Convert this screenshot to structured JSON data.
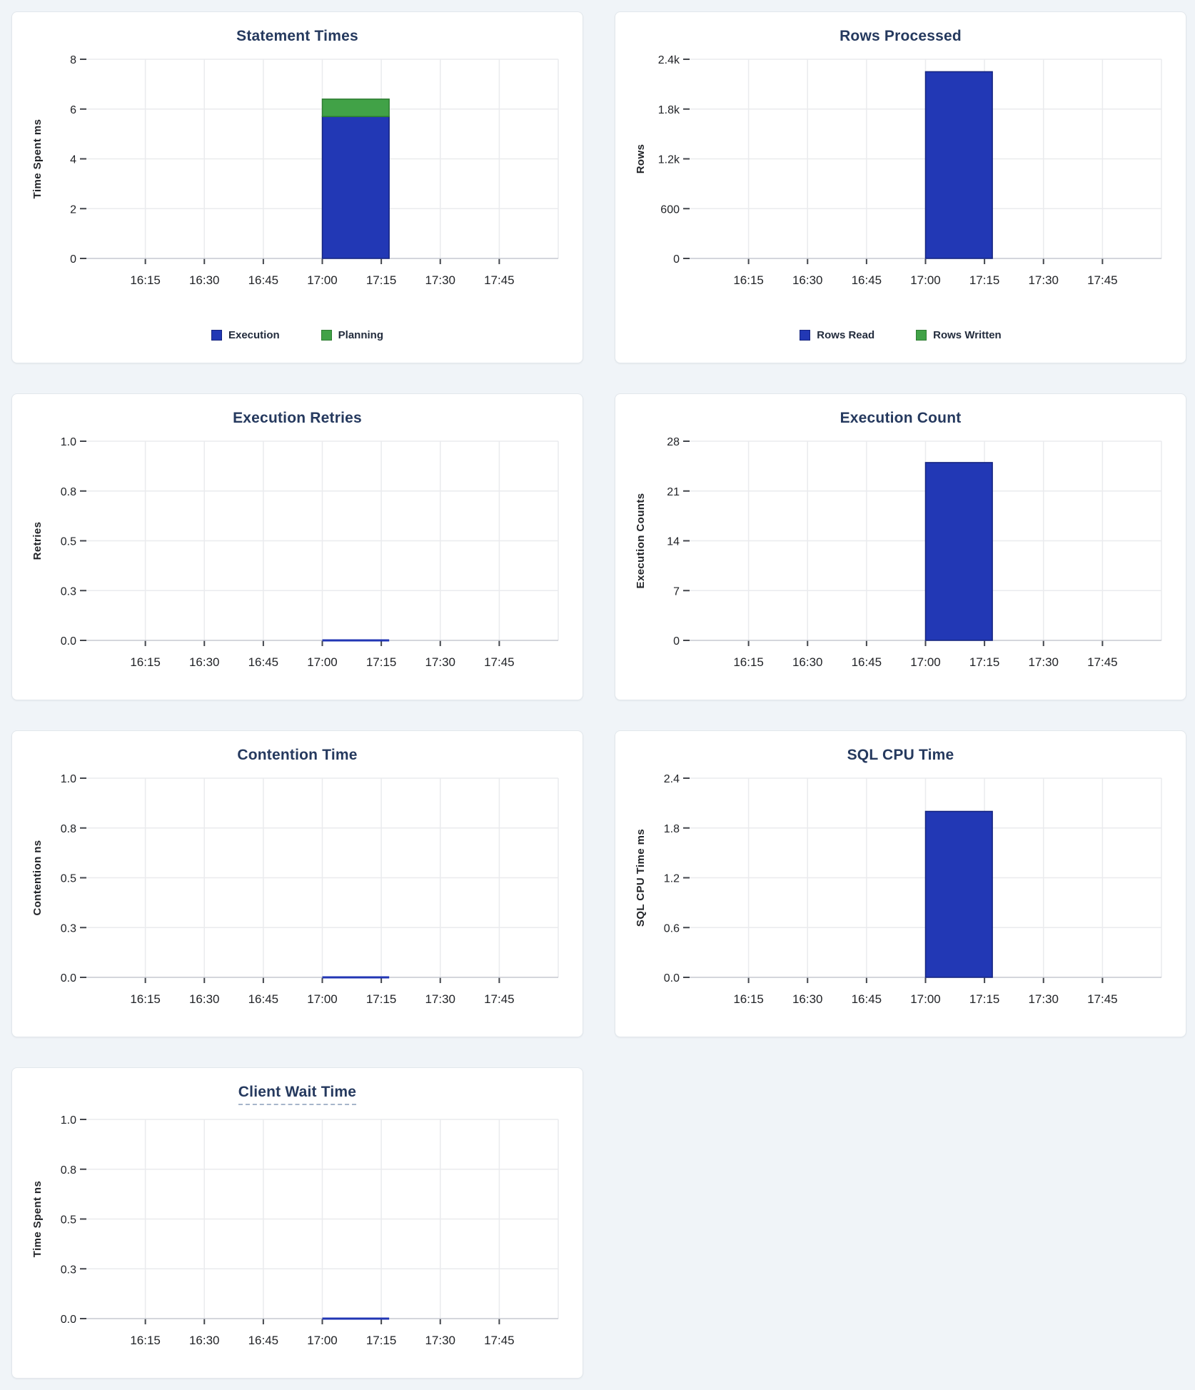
{
  "palette": {
    "page_background": "#f0f4f8",
    "card_background": "#ffffff",
    "card_border": "#e2e7ec",
    "title_color": "#25395e",
    "gridline_color": "#eaebee",
    "axis_line_color": "#c6c9d1",
    "tick_mark_color": "#43464c",
    "tick_label_color": "#212327",
    "series_blue": "#2238b5",
    "series_blue_border": "#15247f",
    "series_green": "#41a247",
    "series_green_border": "#2e7d32"
  },
  "chart_data": [
    {
      "type": "bar",
      "title": "Statement Times",
      "ylabel": "Time Spent ms",
      "ymax": 8,
      "yticks": [
        "0",
        "2",
        "4",
        "6",
        "8"
      ],
      "xticks": [
        "16:15",
        "16:30",
        "16:45",
        "17:00",
        "17:15",
        "17:30",
        "17:45"
      ],
      "x_domain": [
        "16:00",
        "18:00"
      ],
      "bar_window": [
        "17:00",
        "17:17"
      ],
      "series": [
        {
          "name": "Execution",
          "value": 5.7,
          "color": "#2238b5",
          "border": "#15247f"
        },
        {
          "name": "Planning",
          "value": 0.7,
          "color": "#41a247",
          "border": "#2e7d32"
        }
      ],
      "legend_visible": true
    },
    {
      "type": "bar",
      "title": "Rows Processed",
      "ylabel": "Rows",
      "ymax": 2400,
      "yticks": [
        "0",
        "600",
        "1.2k",
        "1.8k",
        "2.4k"
      ],
      "xticks": [
        "16:15",
        "16:30",
        "16:45",
        "17:00",
        "17:15",
        "17:30",
        "17:45"
      ],
      "x_domain": [
        "16:00",
        "18:00"
      ],
      "bar_window": [
        "17:00",
        "17:17"
      ],
      "series": [
        {
          "name": "Rows Read",
          "value": 2250,
          "color": "#2238b5",
          "border": "#15247f"
        },
        {
          "name": "Rows Written",
          "value": 0,
          "color": "#41a247",
          "border": "#2e7d32"
        }
      ],
      "legend_visible": true
    },
    {
      "type": "line",
      "title": "Execution Retries",
      "ylabel": "Retries",
      "ymax": 1.0,
      "yticks": [
        "0.0",
        "0.3",
        "0.5",
        "0.8",
        "1.0"
      ],
      "xticks": [
        "16:15",
        "16:30",
        "16:45",
        "17:00",
        "17:15",
        "17:30",
        "17:45"
      ],
      "x_domain": [
        "16:00",
        "18:00"
      ],
      "line": {
        "value": 0,
        "x_start": "17:00",
        "x_end": "17:17",
        "color": "#2136b4"
      },
      "series": [
        {
          "name": "Retries",
          "value": 0,
          "color": "#2136b4"
        }
      ],
      "legend_visible": false
    },
    {
      "type": "bar",
      "title": "Execution Count",
      "ylabel": "Execution Counts",
      "ymax": 28,
      "yticks": [
        "0",
        "7",
        "14",
        "21",
        "28"
      ],
      "xticks": [
        "16:15",
        "16:30",
        "16:45",
        "17:00",
        "17:15",
        "17:30",
        "17:45"
      ],
      "x_domain": [
        "16:00",
        "18:00"
      ],
      "bar_window": [
        "17:00",
        "17:17"
      ],
      "series": [
        {
          "name": "Execution Count",
          "value": 25,
          "color": "#2238b5",
          "border": "#15247f"
        }
      ],
      "legend_visible": false
    },
    {
      "type": "line",
      "title": "Contention Time",
      "ylabel": "Contention ns",
      "ymax": 1.0,
      "yticks": [
        "0.0",
        "0.3",
        "0.5",
        "0.8",
        "1.0"
      ],
      "xticks": [
        "16:15",
        "16:30",
        "16:45",
        "17:00",
        "17:15",
        "17:30",
        "17:45"
      ],
      "x_domain": [
        "16:00",
        "18:00"
      ],
      "line": {
        "value": 0,
        "x_start": "17:00",
        "x_end": "17:17",
        "color": "#2136b4"
      },
      "series": [
        {
          "name": "Contention",
          "value": 0,
          "color": "#2136b4"
        }
      ],
      "legend_visible": false
    },
    {
      "type": "bar",
      "title": "SQL CPU Time",
      "ylabel": "SQL CPU Time ms",
      "ymax": 2.4,
      "yticks": [
        "0.0",
        "0.6",
        "1.2",
        "1.8",
        "2.4"
      ],
      "xticks": [
        "16:15",
        "16:30",
        "16:45",
        "17:00",
        "17:15",
        "17:30",
        "17:45"
      ],
      "x_domain": [
        "16:00",
        "18:00"
      ],
      "bar_window": [
        "17:00",
        "17:17"
      ],
      "series": [
        {
          "name": "SQL CPU Time",
          "value": 2.0,
          "color": "#2238b5",
          "border": "#15247f"
        }
      ],
      "legend_visible": false
    },
    {
      "type": "line",
      "title": "Client Wait Time",
      "title_tooltip_underline": true,
      "ylabel": "Time Spent ns",
      "ymax": 1.0,
      "yticks": [
        "0.0",
        "0.3",
        "0.5",
        "0.8",
        "1.0"
      ],
      "xticks": [
        "16:15",
        "16:30",
        "16:45",
        "17:00",
        "17:15",
        "17:30",
        "17:45"
      ],
      "x_domain": [
        "16:00",
        "18:00"
      ],
      "line": {
        "value": 0,
        "x_start": "17:00",
        "x_end": "17:17",
        "color": "#2136b4"
      },
      "series": [
        {
          "name": "Client Wait",
          "value": 0,
          "color": "#2136b4"
        }
      ],
      "legend_visible": false
    }
  ]
}
